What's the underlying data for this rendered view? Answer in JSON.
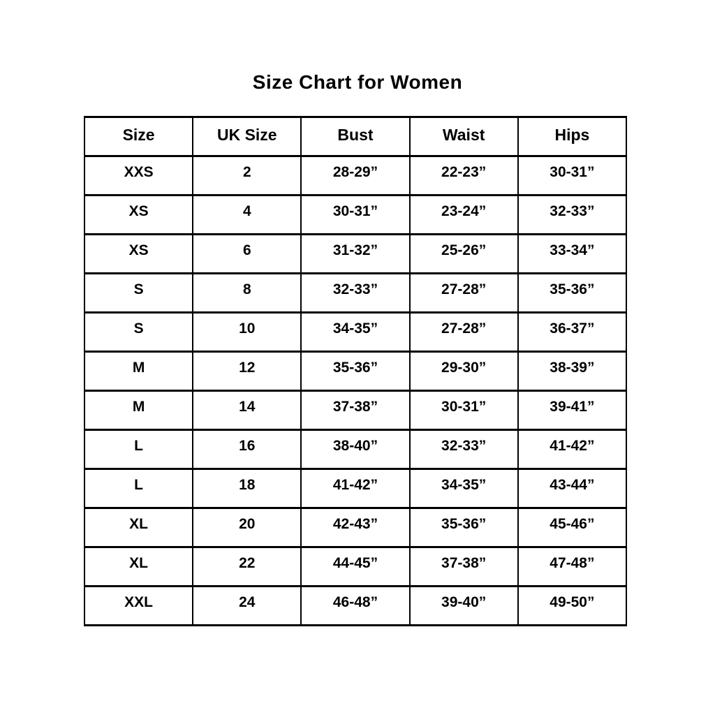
{
  "title": "Size Chart for Women",
  "colors": {
    "background": "#ffffff",
    "border": "#000000",
    "text": "#000000"
  },
  "chart_data": {
    "type": "table",
    "title": "Size Chart for Women",
    "headers": [
      "Size",
      "UK Size",
      "Bust",
      "Waist",
      "Hips"
    ],
    "rows": [
      [
        "XXS",
        "2",
        "28-29”",
        "22-23”",
        "30-31”"
      ],
      [
        "XS",
        "4",
        "30-31”",
        "23-24”",
        "32-33”"
      ],
      [
        "XS",
        "6",
        "31-32”",
        "25-26”",
        "33-34”"
      ],
      [
        "S",
        "8",
        "32-33”",
        "27-28”",
        "35-36”"
      ],
      [
        "S",
        "10",
        "34-35”",
        "27-28”",
        "36-37”"
      ],
      [
        "M",
        "12",
        "35-36”",
        "29-30”",
        "38-39”"
      ],
      [
        "M",
        "14",
        "37-38”",
        "30-31”",
        "39-41”"
      ],
      [
        "L",
        "16",
        "38-40”",
        "32-33”",
        "41-42”"
      ],
      [
        "L",
        "18",
        "41-42”",
        "34-35”",
        "43-44”"
      ],
      [
        "XL",
        "20",
        "42-43”",
        "35-36”",
        "45-46”"
      ],
      [
        "XL",
        "22",
        "44-45”",
        "37-38”",
        "47-48”"
      ],
      [
        "XXL",
        "24",
        "46-48”",
        "39-40”",
        "49-50”"
      ]
    ]
  }
}
